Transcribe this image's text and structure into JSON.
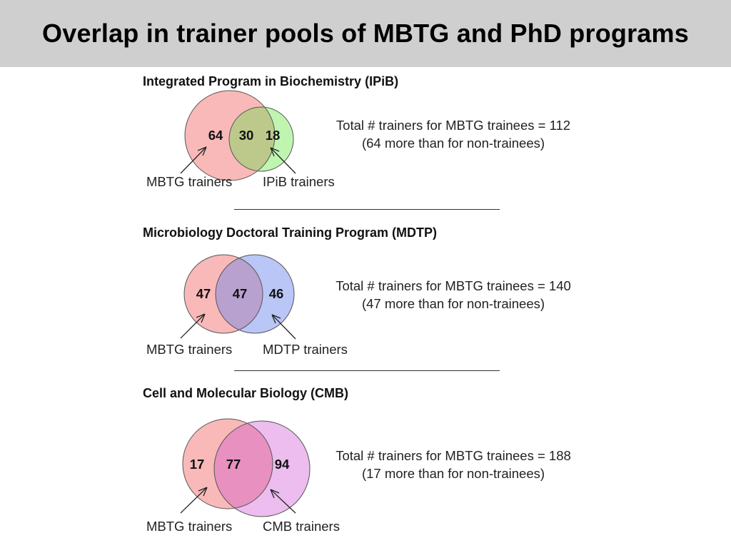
{
  "title": "Overlap in trainer pools of MBTG and PhD programs",
  "colors": {
    "title_bar": "#cfcfcf",
    "mbtg_fill": "#f9b9b9",
    "ipib_fill": "#bff5b0",
    "ipib_overlap": "#bcc98a",
    "mdtp_fill": "#b9c6f6",
    "mdtp_overlap": "#b9a1cf",
    "cmb_fill": "#ecbdee",
    "cmb_overlap": "#e890c0"
  },
  "sections": [
    {
      "heading": "Integrated Program in Biochemistry (IPiB)",
      "venn": {
        "left_only": "64",
        "overlap": "30",
        "right_only": "18"
      },
      "left_label": "MBTG trainers",
      "right_label": "IPiB trainers",
      "summary_line1": "Total # trainers for MBTG trainees = 112",
      "summary_line2": "(64 more than for non-trainees)"
    },
    {
      "heading": "Microbiology Doctoral Training Program (MDTP)",
      "venn": {
        "left_only": "47",
        "overlap": "47",
        "right_only": "46"
      },
      "left_label": "MBTG trainers",
      "right_label": "MDTP trainers",
      "summary_line1": "Total # trainers for MBTG trainees = 140",
      "summary_line2": "(47 more than for non-trainees)"
    },
    {
      "heading": "Cell and Molecular Biology (CMB)",
      "venn": {
        "left_only": "17",
        "overlap": "77",
        "right_only": "94"
      },
      "left_label": "MBTG trainers",
      "right_label": "CMB trainers",
      "summary_line1": "Total # trainers for MBTG trainees = 188",
      "summary_line2": "(17 more than for non-trainees)"
    }
  ]
}
